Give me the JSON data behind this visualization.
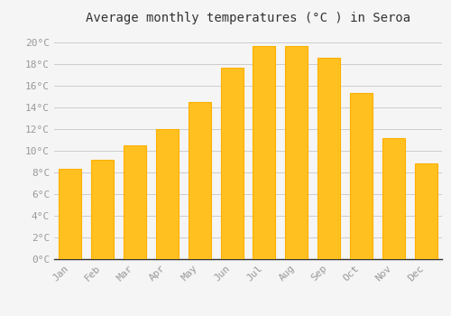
{
  "title": "Average monthly temperatures (°C ) in Seroa",
  "months": [
    "Jan",
    "Feb",
    "Mar",
    "Apr",
    "May",
    "Jun",
    "Jul",
    "Aug",
    "Sep",
    "Oct",
    "Nov",
    "Dec"
  ],
  "temperatures": [
    8.3,
    9.2,
    10.5,
    12.0,
    14.5,
    17.7,
    19.7,
    19.7,
    18.6,
    15.3,
    11.2,
    8.8
  ],
  "bar_color_face": "#FFC020",
  "bar_color_edge": "#FFB000",
  "ylim": [
    0,
    21
  ],
  "yticks": [
    0,
    2,
    4,
    6,
    8,
    10,
    12,
    14,
    16,
    18,
    20
  ],
  "background_color": "#F5F5F5",
  "grid_color": "#CCCCCC",
  "title_fontsize": 10,
  "tick_fontsize": 8,
  "tick_label_color": "#999999",
  "title_color": "#333333",
  "font_family": "monospace"
}
